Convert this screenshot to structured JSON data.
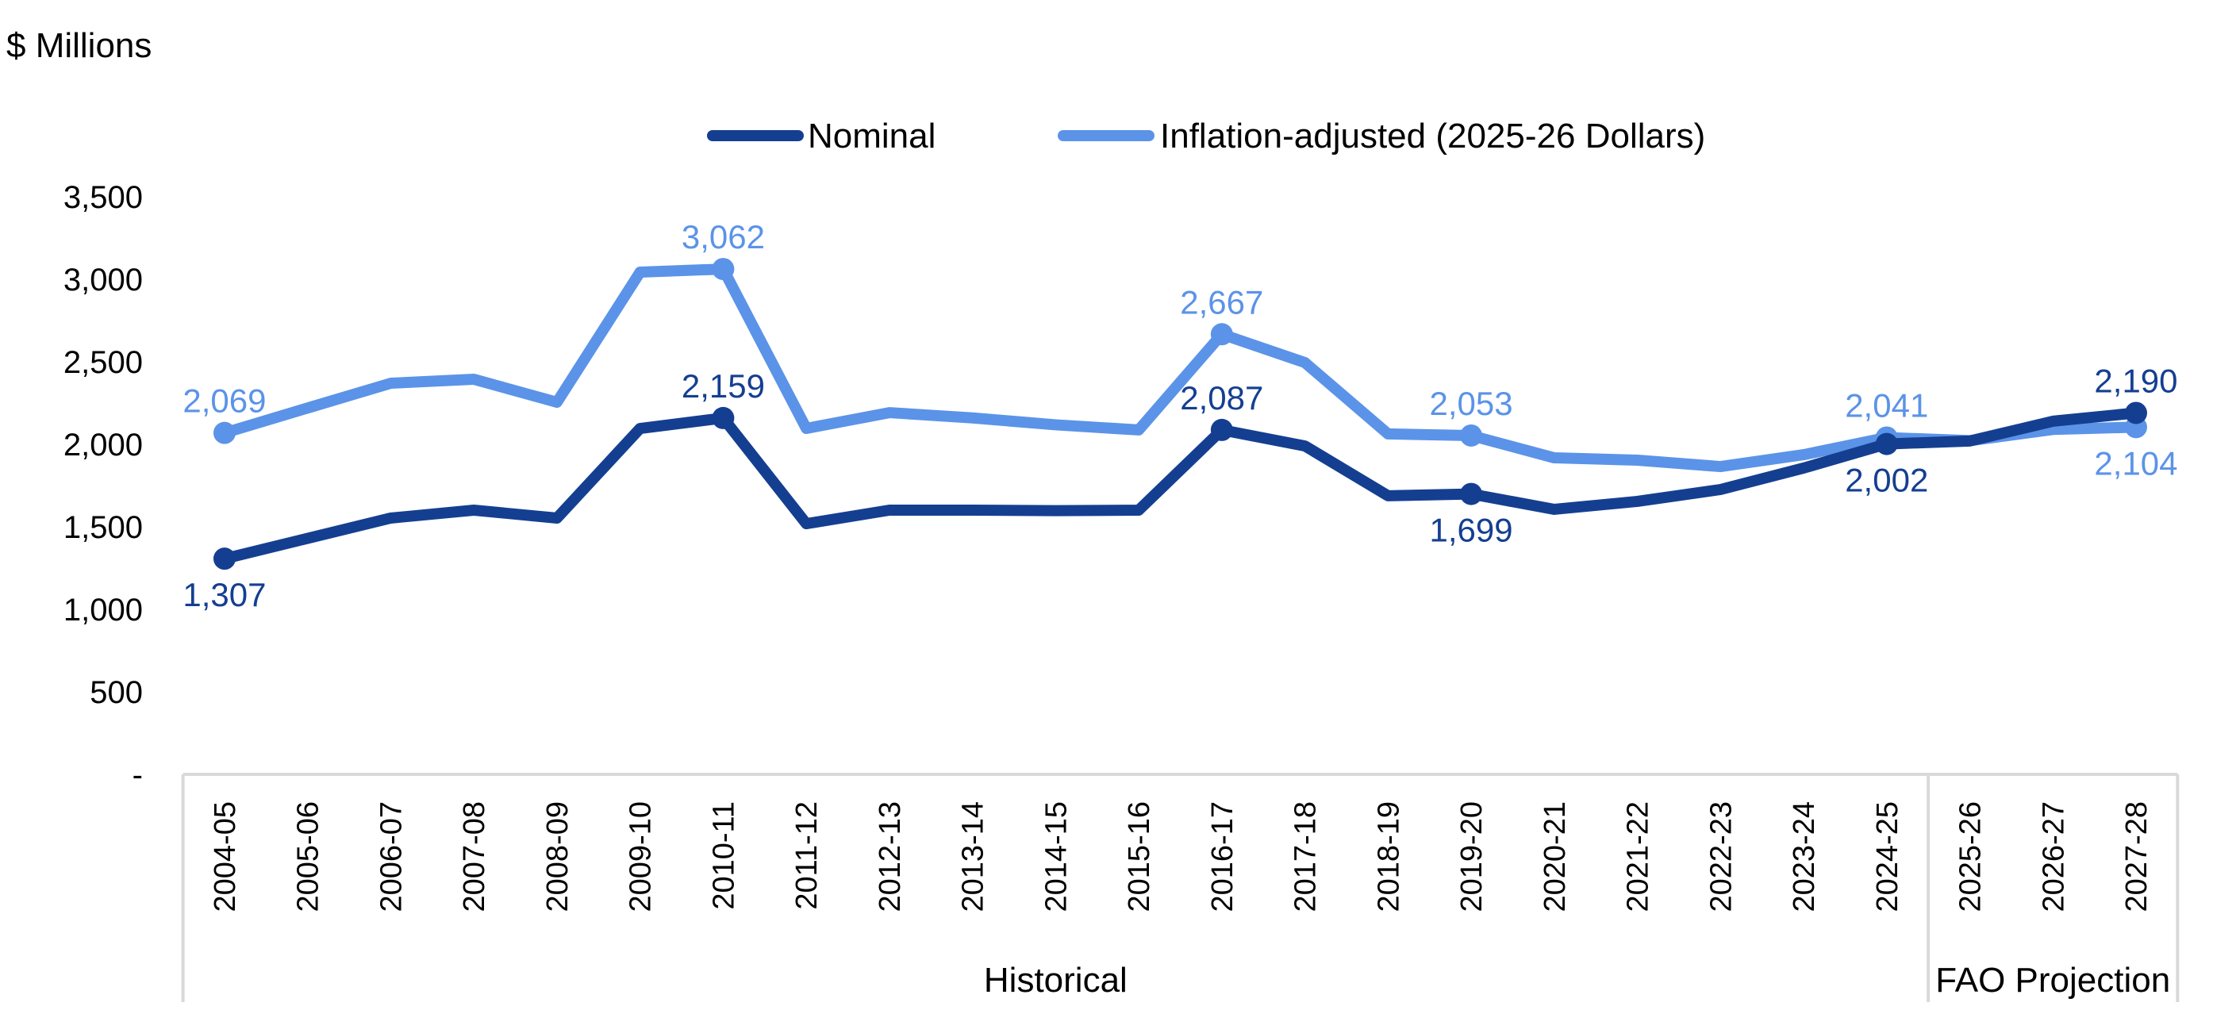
{
  "chart_data": {
    "type": "line",
    "title": "",
    "ylabel": "$ Millions",
    "xlabel": "",
    "ylim": [
      0,
      3500
    ],
    "yticks": [
      0,
      500,
      1000,
      1500,
      2000,
      2500,
      3000,
      3500
    ],
    "ytick_labels": [
      "-",
      "500",
      "1,000",
      "1,500",
      "2,000",
      "2,500",
      "3,000",
      "3,500"
    ],
    "grid": false,
    "legend_position": "top-center",
    "categories": [
      "2004-05",
      "2005-06",
      "2006-07",
      "2007-08",
      "2008-09",
      "2009-10",
      "2010-11",
      "2011-12",
      "2012-13",
      "2013-14",
      "2014-15",
      "2015-16",
      "2016-17",
      "2017-18",
      "2018-19",
      "2019-20",
      "2020-21",
      "2021-22",
      "2022-23",
      "2023-24",
      "2024-25",
      "2025-26",
      "2026-27",
      "2027-28"
    ],
    "category_groups": [
      {
        "label": "Historical",
        "start": 0,
        "end": 20
      },
      {
        "label": "FAO Projection",
        "start": 21,
        "end": 23
      }
    ],
    "series": [
      {
        "name": "Nominal",
        "color": "#143f91",
        "values": [
          1307,
          1430,
          1553,
          1601,
          1553,
          2096,
          2159,
          1519,
          1601,
          1601,
          1598,
          1601,
          2087,
          1990,
          1688,
          1699,
          1606,
          1654,
          1726,
          1856,
          2002,
          2020,
          2140,
          2190
        ],
        "labeled_points": [
          {
            "index": 0,
            "text": "1,307",
            "position": "below"
          },
          {
            "index": 6,
            "text": "2,159",
            "position": "above"
          },
          {
            "index": 12,
            "text": "2,087",
            "position": "above"
          },
          {
            "index": 15,
            "text": "1,699",
            "position": "below"
          },
          {
            "index": 20,
            "text": "2,002",
            "position": "below"
          },
          {
            "index": 23,
            "text": "2,190",
            "position": "above"
          }
        ]
      },
      {
        "name": "Inflation-adjusted (2025-26 Dollars)",
        "color": "#5b93e8",
        "values": [
          2069,
          2220,
          2370,
          2394,
          2255,
          3043,
          3062,
          2096,
          2192,
          2160,
          2118,
          2087,
          2667,
          2495,
          2063,
          2053,
          1918,
          1904,
          1865,
          1937,
          2041,
          2022,
          2090,
          2104
        ],
        "labeled_points": [
          {
            "index": 0,
            "text": "2,069",
            "position": "above"
          },
          {
            "index": 6,
            "text": "3,062",
            "position": "above"
          },
          {
            "index": 12,
            "text": "2,667",
            "position": "above"
          },
          {
            "index": 15,
            "text": "2,053",
            "position": "above"
          },
          {
            "index": 20,
            "text": "2,041",
            "position": "above"
          },
          {
            "index": 23,
            "text": "2,104",
            "position": "below"
          }
        ]
      }
    ],
    "axis_line_color": "#d9d9d9"
  },
  "unit_label": "$ Millions",
  "legend": [
    {
      "label": "Nominal",
      "color": "#143f91"
    },
    {
      "label": "Inflation-adjusted (2025-26 Dollars)",
      "color": "#5b93e8"
    }
  ]
}
